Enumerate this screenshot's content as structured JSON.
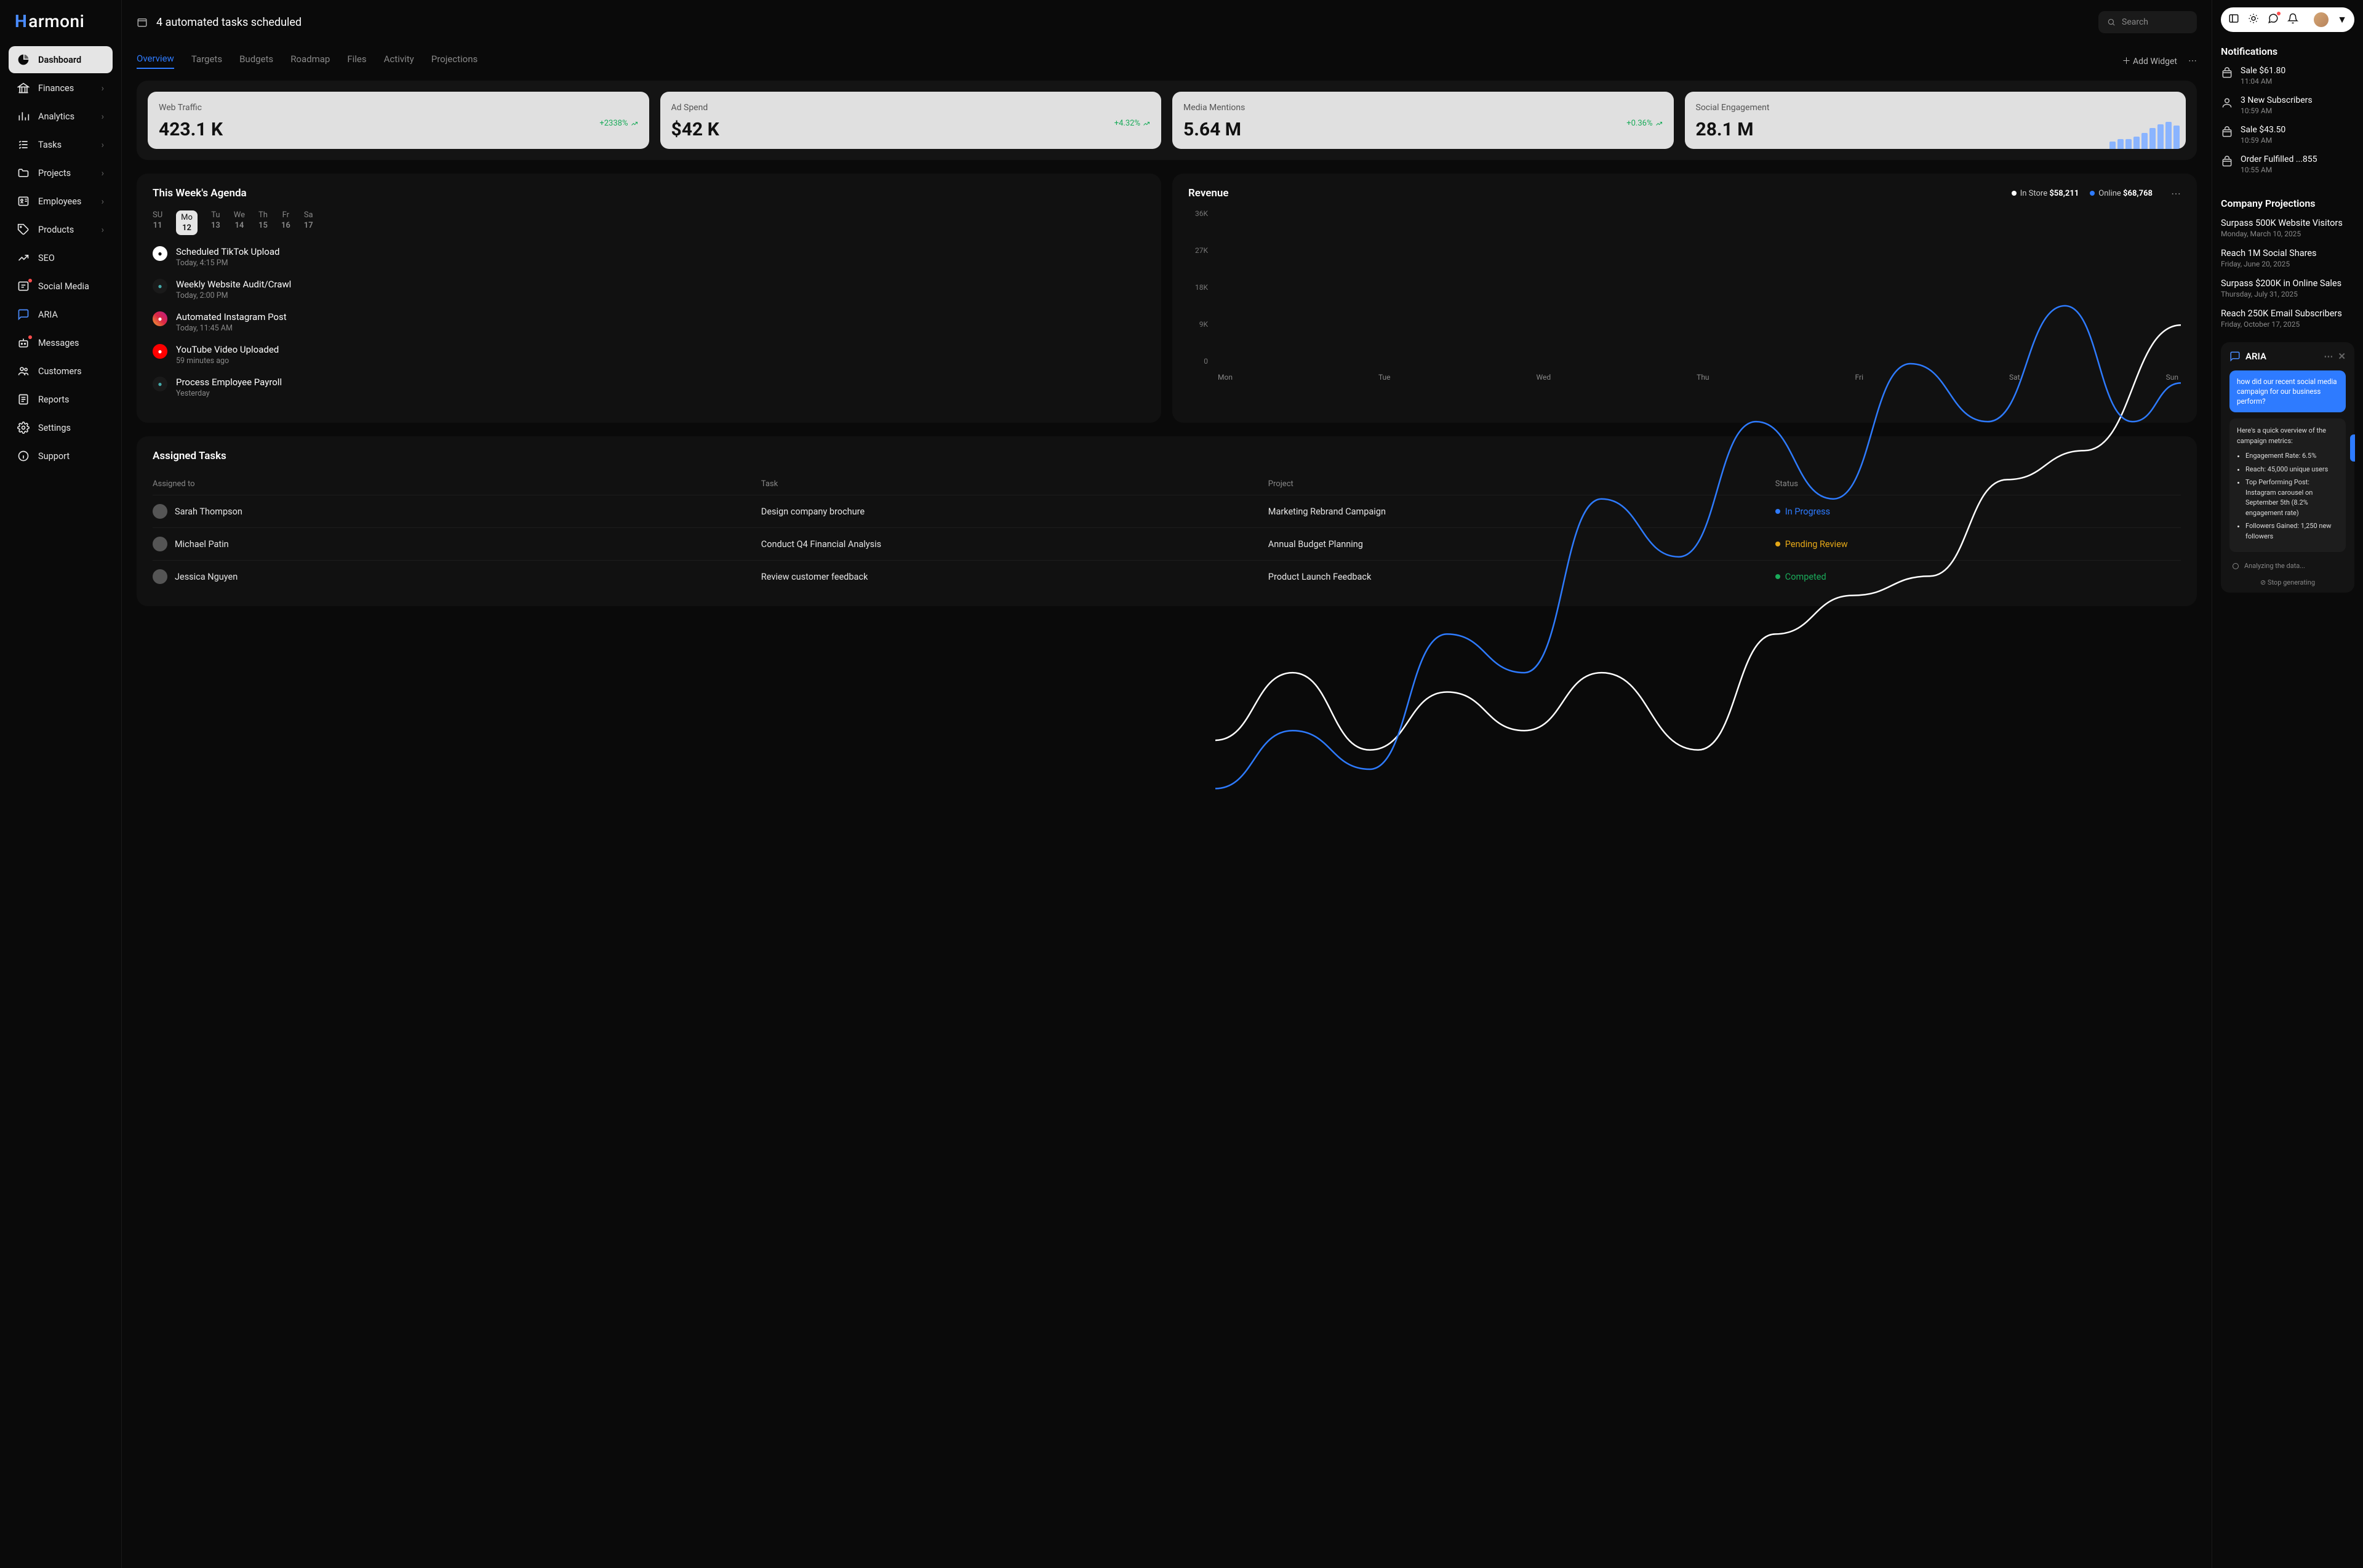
{
  "logo": "armoni",
  "sidebar": {
    "items": [
      {
        "label": "Dashboard",
        "active": true,
        "icon": "pie"
      },
      {
        "label": "Finances",
        "icon": "bank",
        "chev": true
      },
      {
        "label": "Analytics",
        "icon": "bars",
        "chev": true
      },
      {
        "label": "Tasks",
        "icon": "check",
        "chev": true
      },
      {
        "label": "Projects",
        "icon": "folder",
        "chev": true
      },
      {
        "label": "Employees",
        "icon": "id",
        "chev": true
      },
      {
        "label": "Products",
        "icon": "tag",
        "chev": true
      },
      {
        "label": "SEO",
        "icon": "trend"
      },
      {
        "label": "Social Media",
        "icon": "share",
        "dot": true
      },
      {
        "label": "ARIA",
        "icon": "chat",
        "color": "#4a8cff"
      },
      {
        "label": "Messages",
        "icon": "robot",
        "dot": true
      },
      {
        "label": "Customers",
        "icon": "users"
      },
      {
        "label": "Reports",
        "icon": "report"
      },
      {
        "label": "Settings",
        "icon": "gear"
      },
      {
        "label": "Support",
        "icon": "info"
      }
    ]
  },
  "topbar": {
    "title": "4 automated tasks scheduled",
    "search_placeholder": "Search"
  },
  "tabs": {
    "items": [
      "Overview",
      "Targets",
      "Budgets",
      "Roadmap",
      "Files",
      "Activity",
      "Projections"
    ],
    "active": 0,
    "add_widget": "Add Widget"
  },
  "kpis": [
    {
      "label": "Web Traffic",
      "value": "423.1 K",
      "change": "+2338%"
    },
    {
      "label": "Ad Spend",
      "value": "$42 K",
      "change": "+4.32%"
    },
    {
      "label": "Media Mentions",
      "value": "5.64 M",
      "change": "+0.36%"
    },
    {
      "label": "Social Engagement",
      "value": "28.1 M",
      "bars": [
        12,
        16,
        16,
        20,
        26,
        34,
        40,
        44,
        38
      ]
    }
  ],
  "agenda": {
    "title": "This Week's Agenda",
    "days": [
      {
        "d": "SU",
        "n": "11"
      },
      {
        "d": "Mo",
        "n": "12",
        "active": true
      },
      {
        "d": "Tu",
        "n": "13"
      },
      {
        "d": "We",
        "n": "14"
      },
      {
        "d": "Th",
        "n": "15"
      },
      {
        "d": "Fr",
        "n": "16"
      },
      {
        "d": "Sa",
        "n": "17"
      }
    ],
    "items": [
      {
        "title": "Scheduled TikTok Upload",
        "sub": "Today, 4:15 PM",
        "bg": "#fff",
        "fg": "#000"
      },
      {
        "title": "Weekly Website Audit/Crawl",
        "sub": "Today, 2:00 PM",
        "bg": "#1a1a1a",
        "fg": "#4aa"
      },
      {
        "title": "Automated Instagram Post",
        "sub": "Today, 11:45 AM",
        "bg": "linear-gradient(45deg,#f09433,#e6683c,#dc2743,#cc2366,#bc1888)",
        "fg": "#fff"
      },
      {
        "title": "YouTube Video Uploaded",
        "sub": "59 minutes ago",
        "bg": "#ff0000",
        "fg": "#fff"
      },
      {
        "title": "Process Employee Payroll",
        "sub": "Yesterday",
        "bg": "#1a1a1a",
        "fg": "#4aa"
      }
    ]
  },
  "revenue": {
    "title": "Revenue",
    "legend": [
      {
        "label": "In Store",
        "value": "$58,211",
        "color": "#ffffff"
      },
      {
        "label": "Online",
        "value": "$68,768",
        "color": "#2e7bff"
      }
    ],
    "ylabels": [
      "36K",
      "27K",
      "18K",
      "9K",
      "0"
    ],
    "xlabels": [
      "Mon",
      "Tue",
      "Wed",
      "Thu",
      "Fri",
      "Sat",
      "Sun"
    ],
    "lines": {
      "instore": {
        "color": "#ffffff",
        "points": [
          [
            0,
            0.55
          ],
          [
            0.08,
            0.48
          ],
          [
            0.16,
            0.56
          ],
          [
            0.24,
            0.5
          ],
          [
            0.32,
            0.54
          ],
          [
            0.4,
            0.48
          ],
          [
            0.5,
            0.56
          ],
          [
            0.58,
            0.44
          ],
          [
            0.66,
            0.4
          ],
          [
            0.74,
            0.38
          ],
          [
            0.82,
            0.28
          ],
          [
            0.9,
            0.25
          ],
          [
            1.0,
            0.12
          ]
        ]
      },
      "online": {
        "color": "#2e7bff",
        "points": [
          [
            0,
            0.6
          ],
          [
            0.08,
            0.54
          ],
          [
            0.16,
            0.58
          ],
          [
            0.24,
            0.44
          ],
          [
            0.32,
            0.48
          ],
          [
            0.4,
            0.3
          ],
          [
            0.48,
            0.36
          ],
          [
            0.56,
            0.22
          ],
          [
            0.64,
            0.3
          ],
          [
            0.72,
            0.16
          ],
          [
            0.8,
            0.22
          ],
          [
            0.88,
            0.1
          ],
          [
            0.95,
            0.22
          ],
          [
            1.0,
            0.18
          ]
        ]
      }
    }
  },
  "tasks": {
    "title": "Assigned Tasks",
    "columns": [
      "Assigned to",
      "Task",
      "Project",
      "Status"
    ],
    "rows": [
      {
        "user": "Sarah Thompson",
        "task": "Design company brochure",
        "project": "Marketing Rebrand Campaign",
        "status": "In Progress",
        "color": "#2e7bff"
      },
      {
        "user": "Michael Patin",
        "task": "Conduct Q4 Financial Analysis",
        "project": "Annual Budget Planning",
        "status": "Pending Review",
        "color": "#e6a817"
      },
      {
        "user": "Jessica Nguyen",
        "task": "Review customer feedback",
        "project": "Product Launch Feedback",
        "status": "Competed",
        "color": "#1aab5a"
      }
    ]
  },
  "rightbar": {
    "notifications_title": "Notifications",
    "notifications": [
      {
        "title": "Sale $61.80",
        "sub": "11:04 AM",
        "icon": "bag"
      },
      {
        "title": "3 New Subscribers",
        "sub": "10:59 AM",
        "icon": "user"
      },
      {
        "title": "Sale $43.50",
        "sub": "10:59 AM",
        "icon": "bag"
      },
      {
        "title": "Order Fulfilled ...855",
        "sub": "10:55 AM",
        "icon": "bag"
      }
    ],
    "projections_title": "Company Projections",
    "projections": [
      {
        "title": "Surpass 500K Website Visitors",
        "sub": "Monday, March 10, 2025"
      },
      {
        "title": "Reach 1M Social Shares",
        "sub": "Friday, June 20, 2025"
      },
      {
        "title": "Surpass $200K in Online Sales",
        "sub": "Thursday, July 31, 2025"
      },
      {
        "title": "Reach 250K Email Subscribers",
        "sub": "Friday, October 17, 2025"
      }
    ],
    "aria": {
      "name": "ARIA",
      "user_msg": "how did our recent social media campaign for our business perform?",
      "bot_intro": "Here's a quick overview of the campaign metrics:",
      "bullets": [
        "Engagement Rate: 6.5%",
        "Reach: 45,000 unique users",
        "Top Performing Post: Instagram carousel on September 5th (8.2% engagement rate)",
        "Followers Gained: 1,250 new followers"
      ],
      "analyzing": "Analyzing the data...",
      "stop": "Stop generating"
    }
  },
  "colors": {
    "accent": "#2e7bff",
    "green": "#1aab5a",
    "bg": "#0a0a0a",
    "panel": "#111111",
    "card": "#e0e0e0"
  }
}
